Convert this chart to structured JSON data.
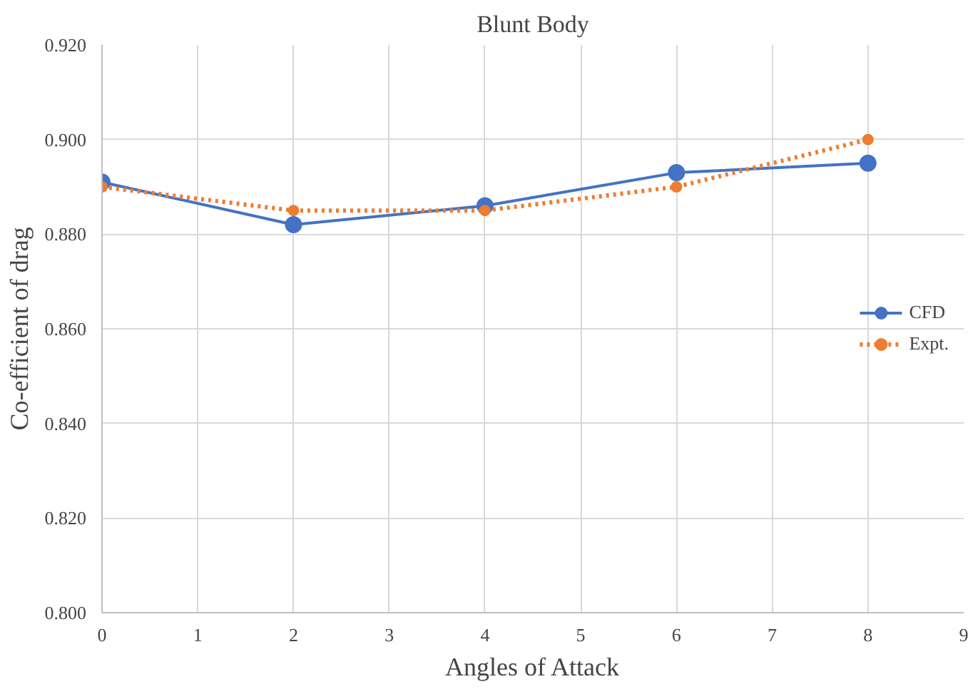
{
  "chart_data": {
    "type": "line",
    "title": "Blunt Body",
    "xlabel": "Angles of Attack",
    "ylabel": "Co-efficient of drag",
    "x": [
      0,
      2,
      4,
      6,
      8
    ],
    "series": [
      {
        "name": "CFD",
        "color": "#4472c4",
        "values": [
          0.891,
          0.882,
          0.886,
          0.893,
          0.895
        ],
        "line_style": "solid"
      },
      {
        "name": "Expt.",
        "color": "#ed7d31",
        "values": [
          0.89,
          0.885,
          0.885,
          0.89,
          0.9
        ],
        "line_style": "dotted"
      }
    ],
    "xlim": [
      0,
      9
    ],
    "xticks": [
      0,
      1,
      2,
      3,
      4,
      5,
      6,
      7,
      8,
      9
    ],
    "ylim": [
      0.8,
      0.92
    ],
    "yticks": [
      {
        "value": 0.8,
        "label": "0.800"
      },
      {
        "value": 0.82,
        "label": "0.820"
      },
      {
        "value": 0.84,
        "label": "0.840"
      },
      {
        "value": 0.86,
        "label": "0.860"
      },
      {
        "value": 0.88,
        "label": "0.880"
      },
      {
        "value": 0.9,
        "label": "0.900"
      },
      {
        "value": 0.92,
        "label": "0.920"
      }
    ],
    "grid": true,
    "legend": "right",
    "marker": "circle"
  }
}
